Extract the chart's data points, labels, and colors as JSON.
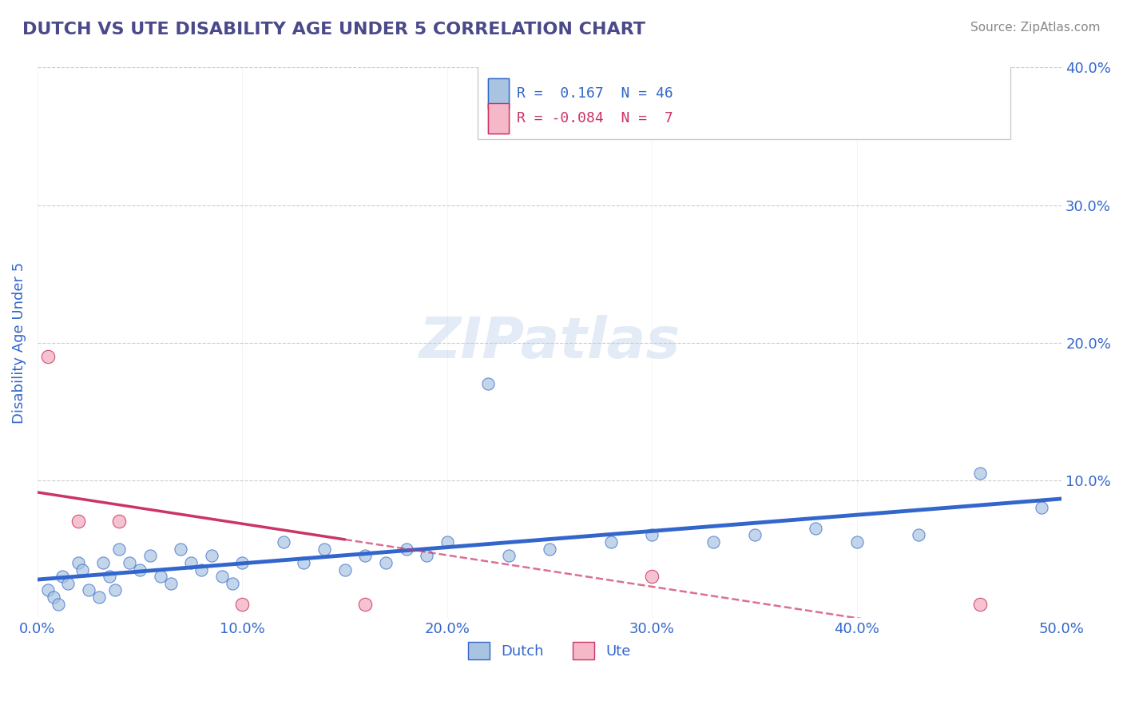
{
  "title": "DUTCH VS UTE DISABILITY AGE UNDER 5 CORRELATION CHART",
  "source": "Source: ZipAtlas.com",
  "xlabel": "",
  "ylabel": "Disability Age Under 5",
  "xlim": [
    0.0,
    0.5
  ],
  "ylim": [
    0.0,
    0.4
  ],
  "xtick_labels": [
    "0.0%",
    "10.0%",
    "20.0%",
    "30.0%",
    "40.0%",
    "50.0%"
  ],
  "xtick_vals": [
    0.0,
    0.1,
    0.2,
    0.3,
    0.4,
    0.5
  ],
  "ytick_labels": [
    "10.0%",
    "20.0%",
    "30.0%",
    "40.0%"
  ],
  "ytick_vals": [
    0.1,
    0.2,
    0.3,
    0.4
  ],
  "title_color": "#4a4a8a",
  "source_color": "#888888",
  "background_color": "#ffffff",
  "grid_color": "#cccccc",
  "dutch_color": "#a8c4e0",
  "dutch_line_color": "#3366cc",
  "dutch_R": 0.167,
  "dutch_N": 46,
  "ute_color": "#f4b8c8",
  "ute_line_color": "#cc3366",
  "ute_R": -0.084,
  "ute_N": 7,
  "watermark": "ZIPatlas",
  "dutch_points": [
    [
      0.005,
      0.02
    ],
    [
      0.008,
      0.015
    ],
    [
      0.01,
      0.01
    ],
    [
      0.012,
      0.03
    ],
    [
      0.015,
      0.025
    ],
    [
      0.02,
      0.04
    ],
    [
      0.022,
      0.035
    ],
    [
      0.025,
      0.02
    ],
    [
      0.03,
      0.015
    ],
    [
      0.032,
      0.04
    ],
    [
      0.035,
      0.03
    ],
    [
      0.038,
      0.02
    ],
    [
      0.04,
      0.05
    ],
    [
      0.045,
      0.04
    ],
    [
      0.05,
      0.035
    ],
    [
      0.055,
      0.045
    ],
    [
      0.06,
      0.03
    ],
    [
      0.065,
      0.025
    ],
    [
      0.07,
      0.05
    ],
    [
      0.075,
      0.04
    ],
    [
      0.08,
      0.035
    ],
    [
      0.085,
      0.045
    ],
    [
      0.09,
      0.03
    ],
    [
      0.095,
      0.025
    ],
    [
      0.1,
      0.04
    ],
    [
      0.12,
      0.055
    ],
    [
      0.13,
      0.04
    ],
    [
      0.14,
      0.05
    ],
    [
      0.15,
      0.035
    ],
    [
      0.16,
      0.045
    ],
    [
      0.17,
      0.04
    ],
    [
      0.18,
      0.05
    ],
    [
      0.19,
      0.045
    ],
    [
      0.2,
      0.055
    ],
    [
      0.22,
      0.17
    ],
    [
      0.23,
      0.045
    ],
    [
      0.25,
      0.05
    ],
    [
      0.28,
      0.055
    ],
    [
      0.3,
      0.06
    ],
    [
      0.33,
      0.055
    ],
    [
      0.35,
      0.06
    ],
    [
      0.38,
      0.065
    ],
    [
      0.4,
      0.055
    ],
    [
      0.43,
      0.06
    ],
    [
      0.46,
      0.105
    ],
    [
      0.49,
      0.08
    ]
  ],
  "ute_points": [
    [
      0.005,
      0.19
    ],
    [
      0.02,
      0.07
    ],
    [
      0.04,
      0.07
    ],
    [
      0.1,
      0.01
    ],
    [
      0.16,
      0.01
    ],
    [
      0.3,
      0.03
    ],
    [
      0.46,
      0.01
    ]
  ]
}
